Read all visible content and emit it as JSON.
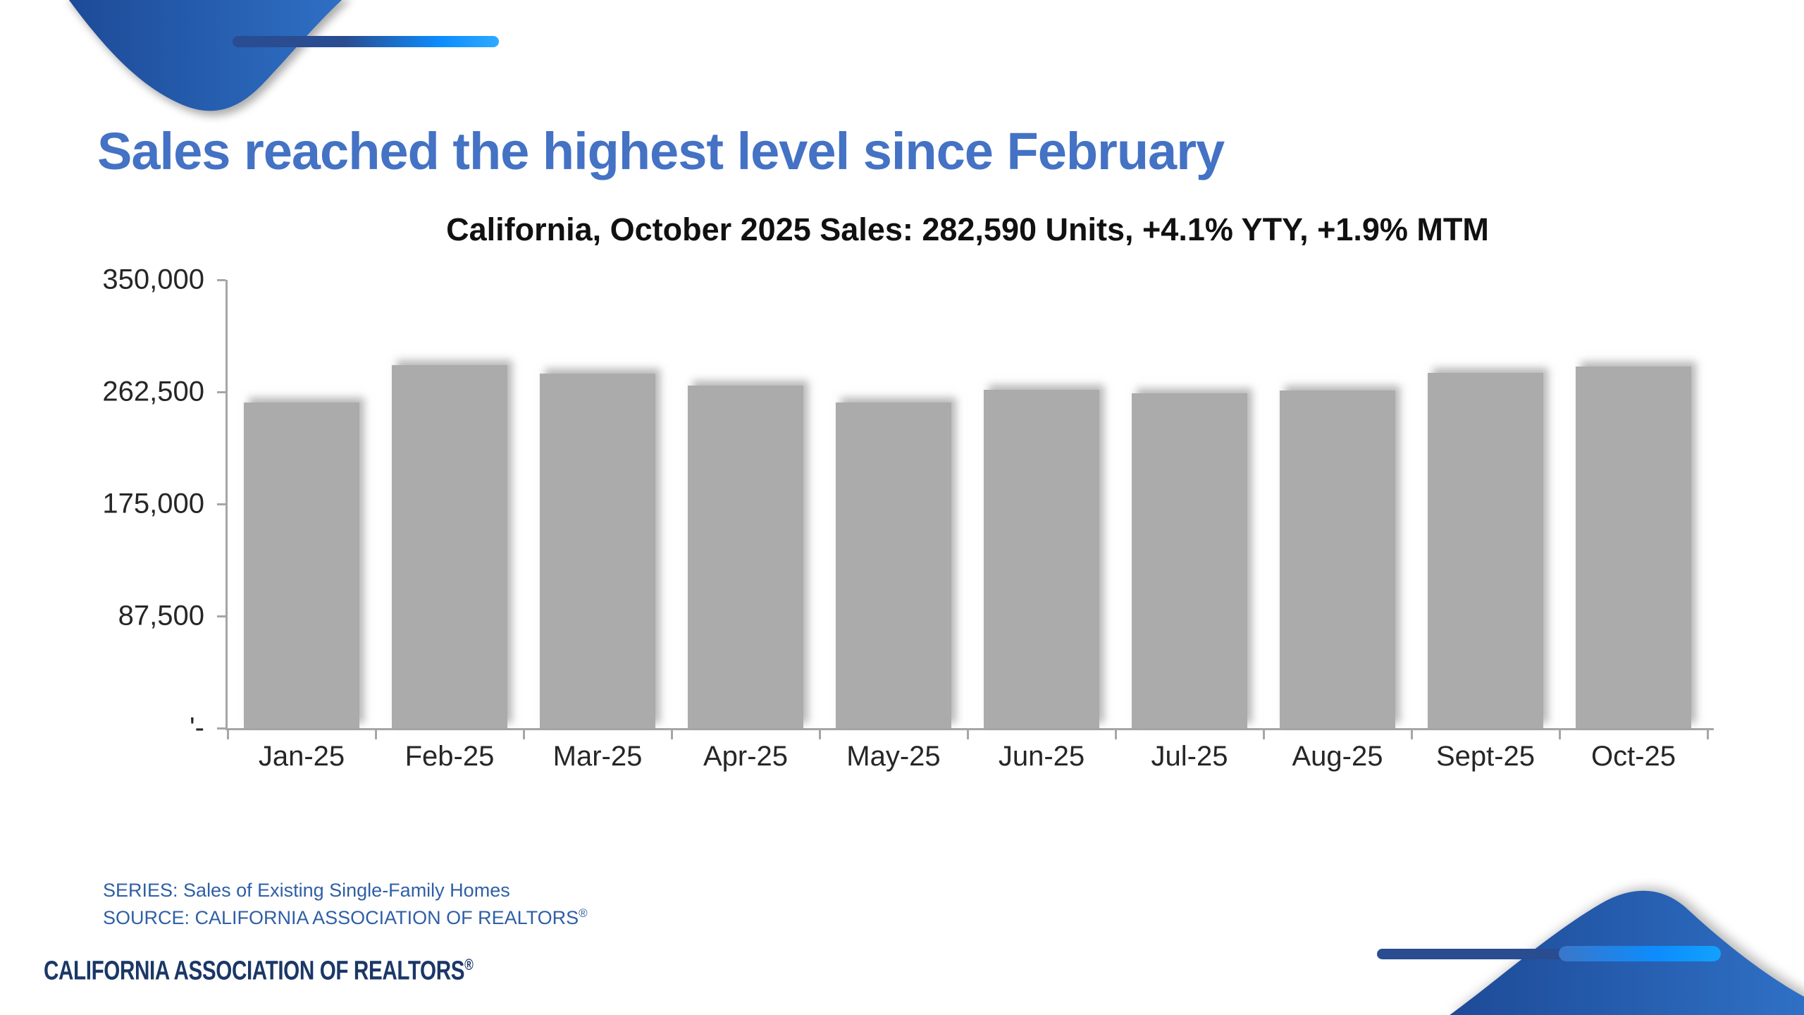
{
  "slide": {
    "title": "Sales reached the highest level since February",
    "footer": {
      "series_line": "SERIES: Sales of Existing Single-Family Homes",
      "source_line": "SOURCE: CALIFORNIA ASSOCIATION OF REALTORS",
      "source_registered_mark": "®"
    },
    "logo": {
      "text": "CALIFORNIA ASSOCIATION OF REALTORS",
      "registered_mark": "®"
    }
  },
  "chart_data": {
    "type": "bar",
    "title": "California, October 2025 Sales: 282,590 Units, +4.1% YTY, +1.9% MTM",
    "categories": [
      "Jan-25",
      "Feb-25",
      "Mar-25",
      "Apr-25",
      "May-25",
      "Jun-25",
      "Jul-25",
      "Aug-25",
      "Sept-25",
      "Oct-25"
    ],
    "values": [
      254100,
      283500,
      277000,
      267700,
      254200,
      264000,
      261500,
      263500,
      277300,
      282590
    ],
    "highlight_value_from_title": 282590,
    "xlabel": "",
    "ylabel": "",
    "ylim": [
      0,
      350000
    ],
    "y_ticks": [
      {
        "value": 350000,
        "label": "350,000"
      },
      {
        "value": 262500,
        "label": "262,500"
      },
      {
        "value": 175000,
        "label": "175,000"
      },
      {
        "value": 87500,
        "label": "87,500"
      },
      {
        "value": 0,
        "label": "'-"
      }
    ],
    "grid": false,
    "legend": false,
    "bar_color": "#ABABAB"
  },
  "colors": {
    "title_blue": "#4472C4",
    "footer_blue": "#2F5FA6",
    "logo_navy": "#1B3767",
    "axis_gray": "#A6A6A6",
    "bar_gray": "#ABABAB",
    "decoration_dark_blue": "#1D4A97",
    "decoration_mid_blue": "#2F70C5",
    "decoration_bright_blue": "#0D8CFD"
  }
}
